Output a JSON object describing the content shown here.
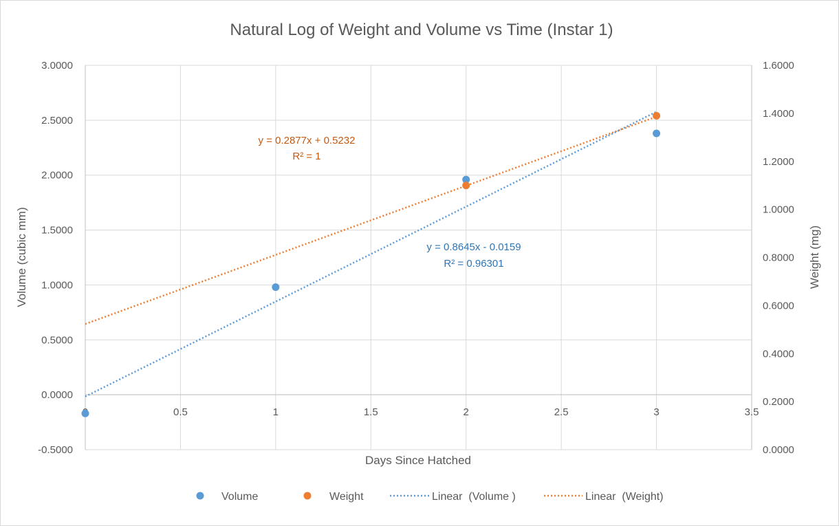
{
  "chart_data": {
    "type": "scatter",
    "title": "Natural Log of Weight and Volume vs Time (Instar 1)",
    "xlabel": "Days Since Hatched",
    "ylabel": "Volume (cubic mm)",
    "y2label": "Weight (mg)",
    "xlim": [
      0,
      3.5
    ],
    "ylim": [
      -0.5,
      3.0
    ],
    "y2lim": [
      0.0,
      1.6
    ],
    "x_ticks": [
      "0",
      "0.5",
      "1",
      "1.5",
      "2",
      "2.5",
      "3",
      "3.5"
    ],
    "y_ticks": [
      "3.0000",
      "2.5000",
      "2.0000",
      "1.5000",
      "1.0000",
      "0.5000",
      "0.0000",
      "-0.5000"
    ],
    "y2_ticks": [
      "1.6000",
      "1.4000",
      "1.2000",
      "1.0000",
      "0.8000",
      "0.6000",
      "0.4000",
      "0.2000",
      "0.0000"
    ],
    "grid": true,
    "legend_position": "bottom",
    "series": [
      {
        "name": "Volume",
        "axis": "primary",
        "color": "#5b9bd5",
        "x": [
          0,
          1,
          2,
          3
        ],
        "y": [
          -0.17,
          0.98,
          1.96,
          2.38
        ]
      },
      {
        "name": "Weight",
        "axis": "secondary",
        "color": "#ed7d31",
        "x": [
          2,
          3
        ],
        "y": [
          1.1,
          1.39
        ]
      }
    ],
    "trendlines": [
      {
        "name": "Linear  (Volume )",
        "axis": "primary",
        "color": "#5b9bd5",
        "slope": 0.8645,
        "intercept": -0.0159,
        "x_range": [
          0,
          3
        ],
        "equation": "y = 0.8645x - 0.0159",
        "r2": "R² = 0.96301"
      },
      {
        "name": "Linear  (Weight)",
        "axis": "secondary",
        "color": "#ed7d31",
        "slope": 0.2877,
        "intercept": 0.5232,
        "x_range": [
          0,
          3
        ],
        "equation": "y = 0.2877x + 0.5232",
        "r2": "R² = 1"
      }
    ]
  }
}
